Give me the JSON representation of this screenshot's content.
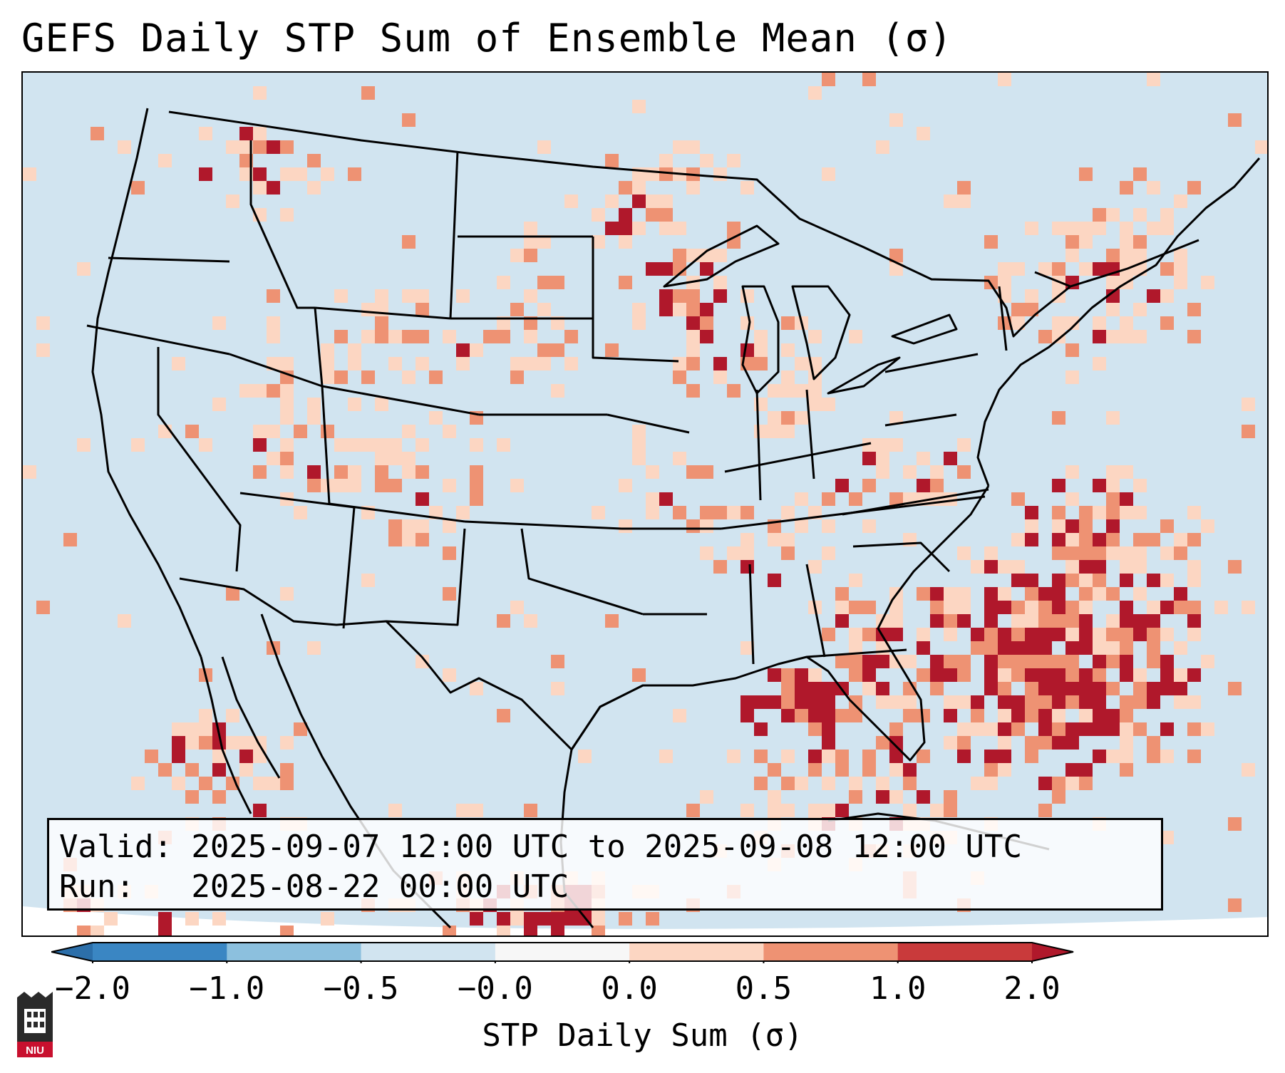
{
  "title": "GEFS Daily STP Sum of Ensemble Mean (σ)",
  "info": {
    "valid_line": "Valid: 2025-09-07 12:00 UTC to 2025-09-08 12:00 UTC",
    "run_line": "Run:   2025-08-22 00:00 UTC"
  },
  "colorbar": {
    "label": "STP Daily Sum (σ)",
    "ticks": [
      "−2.0",
      "−1.0",
      "−0.5",
      "−0.0",
      "0.0",
      "0.5",
      "1.0",
      "2.0"
    ],
    "colors": [
      "#3a86c3",
      "#8cc0de",
      "#d1e4f0",
      "#f7f7f7",
      "#fcd6c2",
      "#ee9273",
      "#c93a3b"
    ],
    "extend_low_color": "#2c6faa",
    "extend_high_color": "#b0182b"
  },
  "map": {
    "background_color": "#d1e4f0",
    "low_color": "#fcd6c2",
    "mid_color": "#ee9273",
    "high_color": "#b0182b",
    "border_color": "#000000"
  },
  "logo": {
    "text": "NIU",
    "icon": "niu-logo-icon"
  }
}
